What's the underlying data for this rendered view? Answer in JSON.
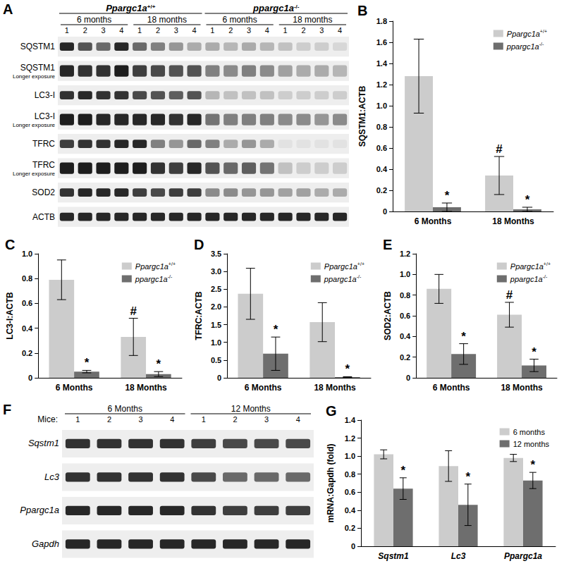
{
  "blots": [
    {
      "title": "A",
      "groups": [
        {
          "label": "Ppargc1a+/+",
          "subgroups": [
            {
              "label": "6 months",
              "lanes": [
                1,
                2,
                3,
                4
              ]
            },
            {
              "label": "18 months",
              "lanes": [
                1,
                2,
                3,
                4
              ]
            }
          ]
        },
        {
          "label": "ppargc1a-/-",
          "subgroups": [
            {
              "label": "6 months",
              "lanes": [
                1,
                2,
                3,
                4
              ]
            },
            {
              "label": "18 months",
              "lanes": [
                1,
                2,
                3,
                4
              ]
            }
          ]
        }
      ],
      "rows": [
        {
          "label": "SQSTM1",
          "intensities": [
            0.9,
            0.7,
            0.6,
            0.9,
            0.6,
            0.5,
            0.4,
            0.3,
            0.3,
            0.25,
            0.3,
            0.25,
            0.2,
            0.15,
            0.15,
            0.1
          ]
        },
        {
          "label": "SQSTM1",
          "sublabel": "Longer exposure",
          "intensities": [
            0.9,
            0.85,
            0.85,
            0.95,
            0.8,
            0.75,
            0.7,
            0.7,
            0.5,
            0.45,
            0.5,
            0.45,
            0.35,
            0.3,
            0.3,
            0.25
          ]
        },
        {
          "label": "LC3-I",
          "intensities": [
            0.85,
            0.9,
            0.85,
            0.85,
            0.75,
            0.7,
            0.65,
            0.7,
            0.25,
            0.2,
            0.2,
            0.2,
            0.15,
            0.15,
            0.15,
            0.15
          ]
        },
        {
          "label": "LC3-I",
          "sublabel": "Longer exposure",
          "intensities": [
            0.95,
            0.95,
            0.9,
            0.9,
            0.9,
            0.9,
            0.85,
            0.9,
            0.55,
            0.5,
            0.5,
            0.5,
            0.45,
            0.45,
            0.4,
            0.45
          ]
        },
        {
          "label": "TFRC",
          "intensities": [
            0.8,
            0.85,
            0.85,
            0.9,
            0.9,
            0.5,
            0.4,
            0.6,
            0.5,
            0.3,
            0.4,
            0.3,
            0.05,
            0.05,
            0.05,
            0.05
          ]
        },
        {
          "label": "TFRC",
          "sublabel": "Longer exposure",
          "intensities": [
            0.95,
            0.95,
            0.95,
            0.95,
            0.95,
            0.85,
            0.8,
            0.9,
            0.7,
            0.6,
            0.65,
            0.55,
            0.2,
            0.15,
            0.15,
            0.15
          ]
        },
        {
          "label": "SOD2",
          "intensities": [
            0.85,
            0.9,
            0.9,
            0.9,
            0.8,
            0.75,
            0.8,
            0.8,
            0.45,
            0.45,
            0.4,
            0.4,
            0.35,
            0.35,
            0.3,
            0.3
          ]
        },
        {
          "label": "ACTB",
          "intensities": [
            0.9,
            0.9,
            0.9,
            0.9,
            0.9,
            0.9,
            0.9,
            0.9,
            0.9,
            0.9,
            0.9,
            0.9,
            0.9,
            0.9,
            0.9,
            0.9
          ]
        }
      ]
    },
    {
      "title": "F",
      "lane_title": "Mice:",
      "groups": [
        {
          "subgroups": [
            {
              "label": "6 Months",
              "lanes": [
                1,
                2,
                3,
                4
              ]
            },
            {
              "label": "12 Months",
              "lanes": [
                1,
                2,
                3,
                4
              ]
            }
          ]
        }
      ],
      "rows": [
        {
          "label": "Sqstm1",
          "intensities": [
            0.85,
            0.85,
            0.85,
            0.85,
            0.8,
            0.75,
            0.75,
            0.75
          ]
        },
        {
          "label": "Lc3",
          "intensities": [
            0.85,
            0.85,
            0.85,
            0.85,
            0.75,
            0.6,
            0.6,
            0.6
          ]
        },
        {
          "label": "Ppargc1a",
          "intensities": [
            0.9,
            0.9,
            0.9,
            0.9,
            0.85,
            0.8,
            0.8,
            0.8
          ]
        },
        {
          "label": "Gapdh",
          "intensities": [
            0.9,
            0.9,
            0.9,
            0.9,
            0.9,
            0.9,
            0.9,
            0.9
          ]
        }
      ]
    }
  ],
  "chart_data": [
    {
      "type": "bar",
      "title": "B",
      "ylabel": "SQSTM1:ACTB",
      "categories": [
        "6 Months",
        "18 Months"
      ],
      "ylim": [
        0,
        1.8
      ],
      "yticks": [
        0,
        0.2,
        0.4,
        0.6,
        0.8,
        {
          "value": 1,
          "label": "1.0"
        },
        1.2,
        1.4,
        1.6,
        1.8
      ],
      "grid": false,
      "legend": "upper right",
      "series": [
        {
          "name": "Ppargc1a+/+",
          "color": "#cccccc",
          "values": [
            1.28,
            0.34
          ],
          "errors": [
            0.35,
            0.18
          ],
          "annotations": [
            null,
            "#"
          ]
        },
        {
          "name": "ppargc1a-/-",
          "color": "#6e6e6e",
          "values": [
            0.04,
            0.02
          ],
          "errors": [
            0.04,
            0.02
          ],
          "annotations": [
            "*",
            "*"
          ]
        }
      ]
    },
    {
      "type": "bar",
      "title": "C",
      "ylabel": "LC3-I:ACTB",
      "categories": [
        "6 Months",
        "18 Months"
      ],
      "ylim": [
        0,
        1
      ],
      "yticks": [
        0,
        0.2,
        0.4,
        0.6,
        0.8,
        {
          "value": 1,
          "label": "1.0"
        }
      ],
      "grid": false,
      "legend": "upper right",
      "series": [
        {
          "name": "Ppargc1a+/+",
          "color": "#cccccc",
          "values": [
            0.79,
            0.33
          ],
          "errors": [
            0.16,
            0.15
          ],
          "annotations": [
            null,
            "#"
          ]
        },
        {
          "name": "ppargc1a-/-",
          "color": "#6e6e6e",
          "values": [
            0.05,
            0.03
          ],
          "errors": [
            0.01,
            0.02
          ],
          "annotations": [
            "*",
            "*"
          ]
        }
      ]
    },
    {
      "type": "bar",
      "title": "D",
      "ylabel": "TFRC:ACTB",
      "categories": [
        "6 Months",
        "18 Months"
      ],
      "ylim": [
        0,
        3.5
      ],
      "yticks": [
        0,
        0.5,
        {
          "value": 1,
          "label": "1.0"
        },
        1.5,
        {
          "value": 2,
          "label": "2.0"
        },
        2.5,
        {
          "value": 3,
          "label": "3.0"
        },
        3.5
      ],
      "grid": false,
      "legend": "upper right",
      "series": [
        {
          "name": "Ppargc1a+/+",
          "color": "#cccccc",
          "values": [
            2.37,
            1.57
          ],
          "errors": [
            0.72,
            0.55
          ]
        },
        {
          "name": "ppargc1a-/-",
          "color": "#6e6e6e",
          "values": [
            0.68,
            0.02
          ],
          "errors": [
            0.47,
            0.01
          ],
          "annotations": [
            "*",
            "*"
          ]
        }
      ]
    },
    {
      "type": "bar",
      "title": "E",
      "ylabel": "SOD2:ACTB",
      "categories": [
        "6 Months",
        "18 Months"
      ],
      "ylim": [
        0,
        1.2
      ],
      "yticks": [
        0,
        0.2,
        0.4,
        0.6,
        0.8,
        {
          "value": 1,
          "label": "1.0"
        },
        1.2
      ],
      "grid": false,
      "legend": "upper right",
      "series": [
        {
          "name": "Ppargc1a+/+",
          "color": "#cccccc",
          "values": [
            0.86,
            0.61
          ],
          "errors": [
            0.14,
            0.12
          ],
          "annotations": [
            null,
            "#"
          ]
        },
        {
          "name": "ppargc1a-/-",
          "color": "#6e6e6e",
          "values": [
            0.23,
            0.12
          ],
          "errors": [
            0.1,
            0.06
          ],
          "annotations": [
            "*",
            "*"
          ]
        }
      ]
    },
    {
      "type": "bar",
      "title": "G",
      "ylabel": "mRNA:Gapdh (fold)",
      "categories": [
        "Sqstm1",
        "Lc3",
        "Ppargc1a"
      ],
      "ylim": [
        0,
        1.4
      ],
      "yticks": [
        0,
        0.2,
        0.4,
        0.6,
        0.8,
        {
          "value": 1,
          "label": "1.0"
        },
        1.2,
        1.4
      ],
      "grid": false,
      "legend": "upper right",
      "series": [
        {
          "name": "6 months",
          "color": "#cccccc",
          "values": [
            1.02,
            0.89,
            0.98
          ],
          "errors": [
            0.05,
            0.17,
            0.04
          ]
        },
        {
          "name": "12 months",
          "color": "#6e6e6e",
          "values": [
            0.64,
            0.46,
            0.73
          ],
          "errors": [
            0.12,
            0.23,
            0.09
          ],
          "annotations": [
            "*",
            "*",
            "*"
          ]
        }
      ]
    }
  ]
}
